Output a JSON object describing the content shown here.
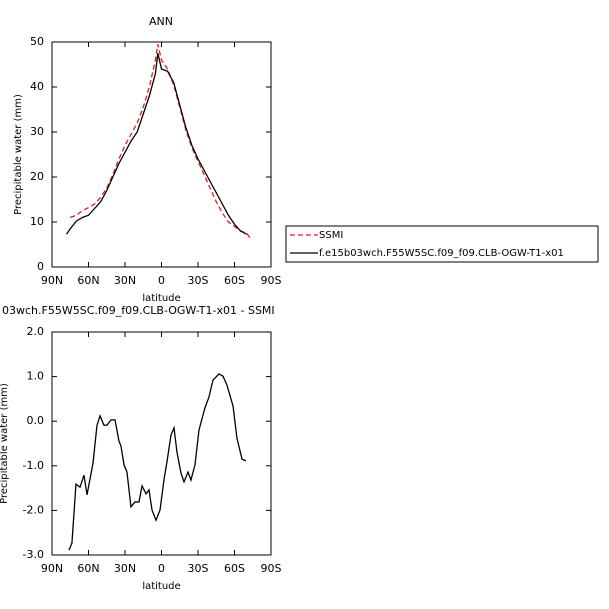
{
  "chart_data": [
    {
      "type": "line",
      "title": "ANN",
      "xlabel": "latitude",
      "ylabel": "Precipitable water (mm)",
      "x": [
        78,
        75,
        70,
        65,
        60,
        55,
        50,
        45,
        40,
        35,
        30,
        25,
        20,
        15,
        10,
        5,
        3,
        0,
        -5,
        -10,
        -15,
        -20,
        -25,
        -30,
        -35,
        -40,
        -45,
        -50,
        -55,
        -60,
        -65,
        -70,
        -74
      ],
      "series": [
        {
          "name": "SSMI",
          "color": "#e41a1c",
          "linestyle": "dashed",
          "values": [
            null,
            11,
            11.5,
            12.5,
            13.2,
            14,
            15.5,
            17.5,
            20.5,
            24,
            27,
            29.5,
            32,
            35.5,
            40,
            46,
            49.5,
            46,
            44,
            40.5,
            35.5,
            30.5,
            26.5,
            23.5,
            20.5,
            17.5,
            14.5,
            12,
            10,
            9,
            8,
            7.5,
            6
          ]
        },
        {
          "name": "f.e15b03wch.F55W5SC.f09_f09.CLB-OGW-T1-x01",
          "color": "#000000",
          "linestyle": "solid",
          "values": [
            7.3,
            8.5,
            10.2,
            11,
            11.5,
            13,
            14.5,
            17,
            20,
            23,
            25.5,
            28,
            30,
            34,
            38,
            43,
            47.5,
            44,
            43.5,
            41,
            36,
            31,
            27,
            24,
            21.5,
            19,
            16.5,
            14,
            11.5,
            9.5,
            8,
            7.3,
            null
          ]
        }
      ],
      "xlim": [
        90,
        -90
      ],
      "xticks": [
        {
          "value": 90,
          "label": "90N"
        },
        {
          "value": 60,
          "label": "60N"
        },
        {
          "value": 30,
          "label": "30N"
        },
        0,
        {
          "value": -30,
          "label": "30S"
        },
        {
          "value": -60,
          "label": "60S"
        },
        {
          "value": -90,
          "label": "90S"
        }
      ],
      "ylim": [
        0,
        50
      ],
      "yticks": [
        0,
        10,
        20,
        30,
        40,
        50
      ],
      "legend": "right"
    },
    {
      "type": "line",
      "title": "03wch.F55W5SC.f09_f09.CLB-OGW-T1-x01 - SSMI",
      "xlabel": "latitude",
      "ylabel": "Precipitable water (mm)",
      "x": [
        76,
        73.6,
        70.3,
        67,
        63.7,
        61.2,
        56.3,
        53,
        50.5,
        47.3,
        44.8,
        41.5,
        38.2,
        35,
        33.3,
        30.8,
        28.4,
        25.1,
        21.8,
        18.5,
        16,
        12.7,
        10.3,
        7.8,
        4.5,
        1.2,
        -2,
        -4.5,
        -7.8,
        -10.3,
        -12.7,
        -16,
        -18.5,
        -21.8,
        -24.2,
        -27.5,
        -30.8,
        -35.7,
        -39,
        -42.3,
        -47.2,
        -50.5,
        -53.8,
        -58.8,
        -62,
        -66.2,
        -69.4
      ],
      "series": [
        {
          "color": "#000000",
          "linestyle": "solid",
          "values": [
            -2.89,
            -2.73,
            -1.41,
            -1.48,
            -1.21,
            -1.65,
            -0.94,
            -0.09,
            0.12,
            -0.09,
            -0.09,
            0.03,
            0.03,
            -0.44,
            -0.56,
            -0.98,
            -1.14,
            -1.92,
            -1.81,
            -1.81,
            -1.45,
            -1.63,
            -1.54,
            -1.99,
            -2.22,
            -1.99,
            -1.32,
            -0.91,
            -0.31,
            -0.15,
            -0.69,
            -1.16,
            -1.36,
            -1.14,
            -1.32,
            -0.98,
            -0.2,
            0.3,
            0.54,
            0.92,
            1.06,
            1.01,
            0.81,
            0.34,
            -0.38,
            -0.85,
            -0.89
          ]
        }
      ],
      "xlim": [
        90,
        -90
      ],
      "xticks": [
        {
          "value": 90,
          "label": "90N"
        },
        {
          "value": 60,
          "label": "60N"
        },
        {
          "value": 30,
          "label": "30N"
        },
        0,
        {
          "value": -30,
          "label": "30S"
        },
        {
          "value": -60,
          "label": "60S"
        },
        {
          "value": -90,
          "label": "90S"
        }
      ],
      "ylim": [
        -3,
        2
      ],
      "yticks": [
        {
          "value": -3,
          "label": "-3.0"
        },
        {
          "value": -2,
          "label": "-2.0"
        },
        {
          "value": -1,
          "label": "-1.0"
        },
        {
          "value": 0,
          "label": "0.0"
        },
        {
          "value": 1,
          "label": "1.0"
        },
        {
          "value": 2,
          "label": "2.0"
        }
      ]
    }
  ]
}
